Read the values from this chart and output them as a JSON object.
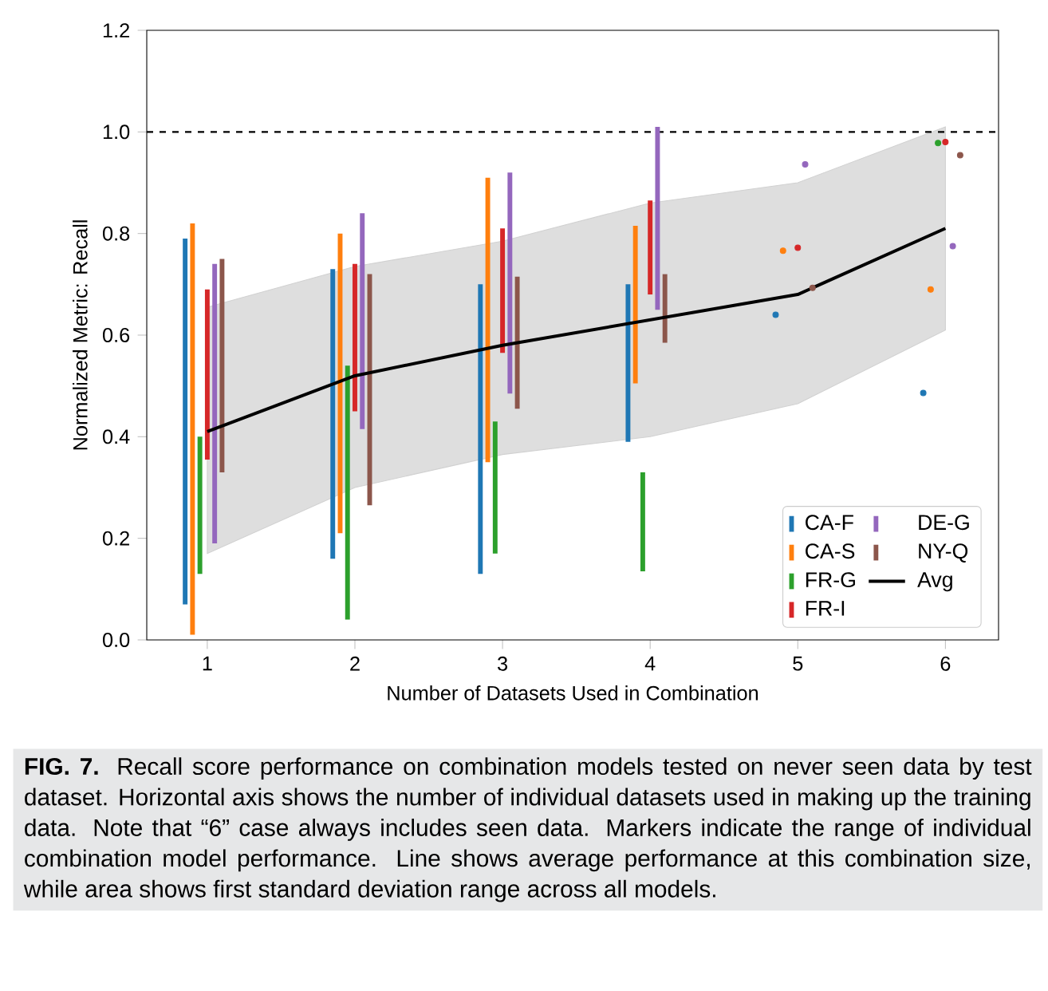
{
  "chart_data": {
    "type": "bar",
    "xlabel": "Number of Datasets Used in Combination",
    "ylabel": "Normalized Metric: Recall",
    "xlim": [
      0.59,
      6.36
    ],
    "ylim": [
      0,
      1.2
    ],
    "xticks": [
      1,
      2,
      3,
      4,
      5,
      6
    ],
    "yticks": [
      {
        "value": 0,
        "label": "0.0"
      },
      {
        "value": 0.2,
        "label": "0.2"
      },
      {
        "value": 0.4,
        "label": "0.4"
      },
      {
        "value": 0.6,
        "label": "0.6"
      },
      {
        "value": 0.8,
        "label": "0.8"
      },
      {
        "value": 1.0,
        "label": "1.0"
      },
      {
        "value": 1.2,
        "label": "1.2"
      }
    ],
    "legend": "bottom right",
    "series": [
      {
        "name": "CA-F",
        "type": "bar",
        "color": "#1f77b4",
        "x": [
          0.85,
          1.85,
          2.85,
          3.85
        ],
        "base": [
          0.07,
          0.16,
          0.13,
          0.39
        ],
        "values": [
          0.72,
          0.57,
          0.57,
          0.31
        ]
      },
      {
        "name": "CA-S",
        "type": "bar",
        "color": "#ff7f0e",
        "x": [
          0.9,
          1.9,
          2.9,
          3.9
        ],
        "base": [
          0.01,
          0.21,
          0.35,
          0.505
        ],
        "values": [
          0.81,
          0.59,
          0.56,
          0.31
        ]
      },
      {
        "name": "FR-G",
        "type": "bar",
        "color": "#2ca02c",
        "x": [
          0.95,
          1.95,
          2.95,
          3.95
        ],
        "base": [
          0.13,
          0.04,
          0.17,
          0.135
        ],
        "values": [
          0.27,
          0.5,
          0.26,
          0.195
        ]
      },
      {
        "name": "FR-I",
        "type": "bar",
        "color": "#d62728",
        "x": [
          1.0,
          2.0,
          3.0,
          4.0
        ],
        "base": [
          0.355,
          0.45,
          0.565,
          0.68
        ],
        "values": [
          0.335,
          0.29,
          0.245,
          0.185
        ]
      },
      {
        "name": "DE-G",
        "type": "bar",
        "color": "#9467bd",
        "x": [
          1.05,
          2.05,
          3.05,
          4.05
        ],
        "base": [
          0.19,
          0.415,
          0.485,
          0.65
        ],
        "values": [
          0.55,
          0.425,
          0.435,
          0.36
        ]
      },
      {
        "name": "NY-Q",
        "type": "bar",
        "color": "#8c564b",
        "x": [
          1.1,
          2.1,
          3.1,
          4.1
        ],
        "base": [
          0.33,
          0.265,
          0.455,
          0.585
        ],
        "values": [
          0.42,
          0.455,
          0.26,
          0.135
        ]
      },
      {
        "type": "scatter",
        "color": "#1f77b4",
        "x": [
          4.85,
          5.85
        ],
        "values": [
          0.64,
          0.486
        ]
      },
      {
        "type": "scatter",
        "color": "#ff7f0e",
        "x": [
          4.9,
          5.9
        ],
        "values": [
          0.766,
          0.69
        ]
      },
      {
        "type": "scatter",
        "color": "#2ca02c",
        "x": [
          5.95
        ],
        "values": [
          0.978
        ]
      },
      {
        "type": "scatter",
        "color": "#d62728",
        "x": [
          5.0,
          6.0
        ],
        "values": [
          0.772,
          0.98
        ]
      },
      {
        "type": "scatter",
        "color": "#9467bd",
        "x": [
          5.05,
          6.05
        ],
        "values": [
          0.936,
          0.775
        ]
      },
      {
        "type": "scatter",
        "color": "#8c564b",
        "x": [
          5.1,
          6.1
        ],
        "values": [
          0.693,
          0.954
        ]
      },
      {
        "name": "Avg",
        "type": "line",
        "color": "#000000",
        "x": [
          1,
          2,
          3,
          4,
          5,
          6
        ],
        "values": [
          0.41,
          0.52,
          0.58,
          0.63,
          0.68,
          0.81
        ],
        "lower": [
          0.17,
          0.3,
          0.365,
          0.4,
          0.465,
          0.61
        ],
        "upper": [
          0.655,
          0.735,
          0.785,
          0.86,
          0.9,
          1.01
        ]
      }
    ],
    "ref_lines": [
      {
        "axis": "y",
        "value": 1.0,
        "color": "#000000",
        "line_style": "dashed"
      }
    ],
    "annotations": [
      "**FIG. 7.** Recall score performance on combination models tested on never seen data by test dataset. Horizontal axis shows the number of individual datasets used in making up the training data. Note that “6” case always includes seen data. Markers indicate the range of individual combination model performance. Line shows average performance at this combination size, while area shows first standard deviation range across all models."
    ]
  }
}
